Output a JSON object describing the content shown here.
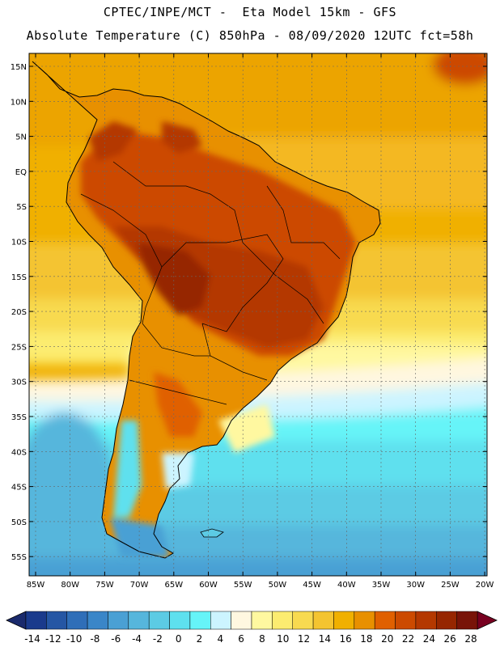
{
  "header": {
    "line1": "CPTEC/INPE/MCT -  Eta Model 15km - GFS",
    "line2": "Absolute Temperature (C) 850hPa - 08/09/2020 12UTC fct=58h"
  },
  "map": {
    "lat_labels": [
      "15N",
      "10N",
      "5N",
      "EQ",
      "5S",
      "10S",
      "15S",
      "20S",
      "25S",
      "30S",
      "35S",
      "40S",
      "45S",
      "50S",
      "55S"
    ],
    "lon_labels": [
      "85W",
      "80W",
      "75W",
      "70W",
      "65W",
      "60W",
      "55W",
      "50W",
      "45W",
      "40W",
      "35W",
      "30W",
      "25W",
      "20W"
    ],
    "ocean_north_color": "#f0b000",
    "land_hot_color": "#b04a10"
  },
  "colorbar": {
    "labels": [
      "-14",
      "-12",
      "-10",
      "-8",
      "-6",
      "-4",
      "-2",
      "0",
      "2",
      "4",
      "6",
      "8",
      "10",
      "12",
      "14",
      "16",
      "18",
      "20",
      "22",
      "24",
      "26",
      "28"
    ],
    "colors": [
      "#1a3a8c",
      "#2556a4",
      "#2f6eb8",
      "#3a86c8",
      "#4aa0d4",
      "#56b6dc",
      "#5ccbe4",
      "#5ee0ee",
      "#66f4f8",
      "#ccf4ff",
      "#fff7e0",
      "#fff8a0",
      "#fcec70",
      "#f8da50",
      "#f4c430",
      "#f0b000",
      "#e89000",
      "#e06000",
      "#cc4a00",
      "#b43800",
      "#962600",
      "#781408"
    ],
    "left_arrow_color": "#1a2a6c",
    "right_arrow_color": "#780020"
  }
}
